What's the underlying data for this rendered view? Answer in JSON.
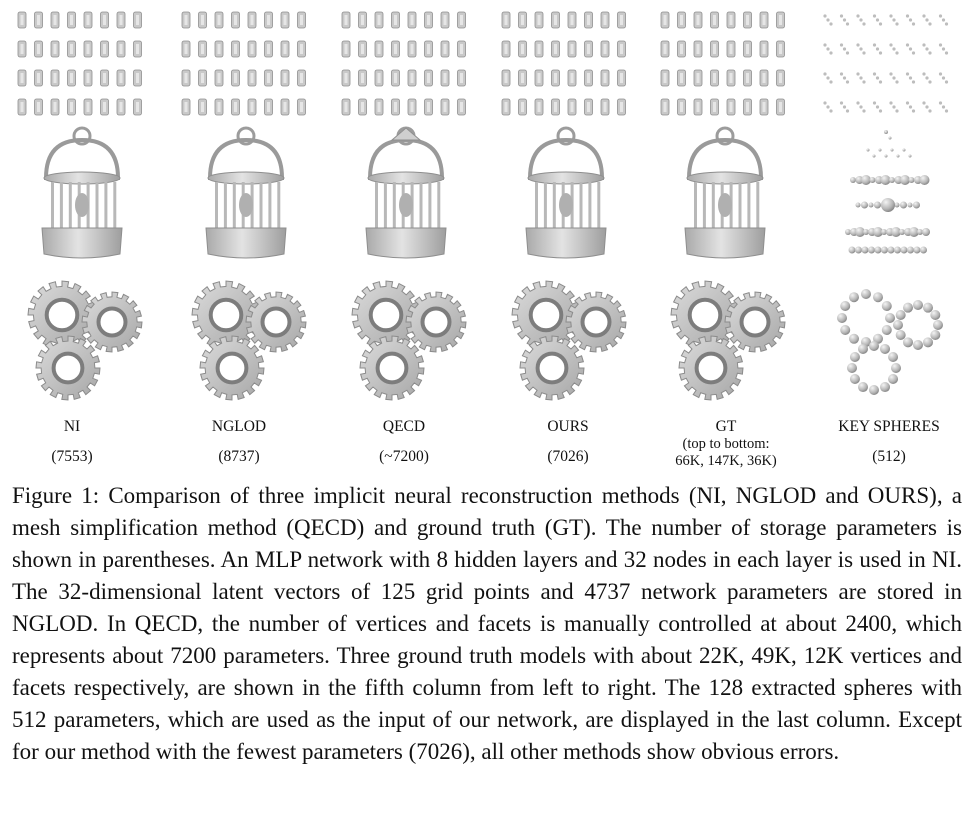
{
  "columns": [
    {
      "name": "NI",
      "params": "(7553)"
    },
    {
      "name": "NGLOD",
      "params": "(8737)"
    },
    {
      "name": "QECD",
      "params": "(~7200)"
    },
    {
      "name": "OURS",
      "params": "(7026)"
    },
    {
      "name": "GT",
      "note_line1": "(top to bottom:",
      "note_line2": "66K, 147K, 36K)"
    },
    {
      "name": "KEY SPHERES",
      "params": "(512)"
    }
  ],
  "caption": {
    "label": "Figure 1:",
    "text": "Comparison of three implicit neural reconstruction methods (NI, NGLOD and OURS), a mesh simplification method (QECD) and ground truth (GT). The number of storage parameters is shown in parentheses. An MLP network with 8 hidden layers and 32 nodes in each layer is used in NI. The 32-dimensional latent vectors of 125 grid points and 4737 network parameters are stored in NGLOD. In QECD, the number of vertices and facets is manually controlled at about 2400, which represents about 7200 parameters. Three ground truth models with about 22K, 49K, 12K vertices and facets respectively, are shown in the fifth column from left to right. The 128 extracted spheres with 512 parameters, which are used as the input of our network, are displayed in the last column. Except for our method with the fewest parameters (7026), all other methods show obvious errors."
  },
  "colors": {
    "mesh_fill": "#c9c9c9",
    "mesh_dark": "#8f8f8f",
    "mesh_light": "#e6e6e6",
    "bg": "#ffffff"
  }
}
